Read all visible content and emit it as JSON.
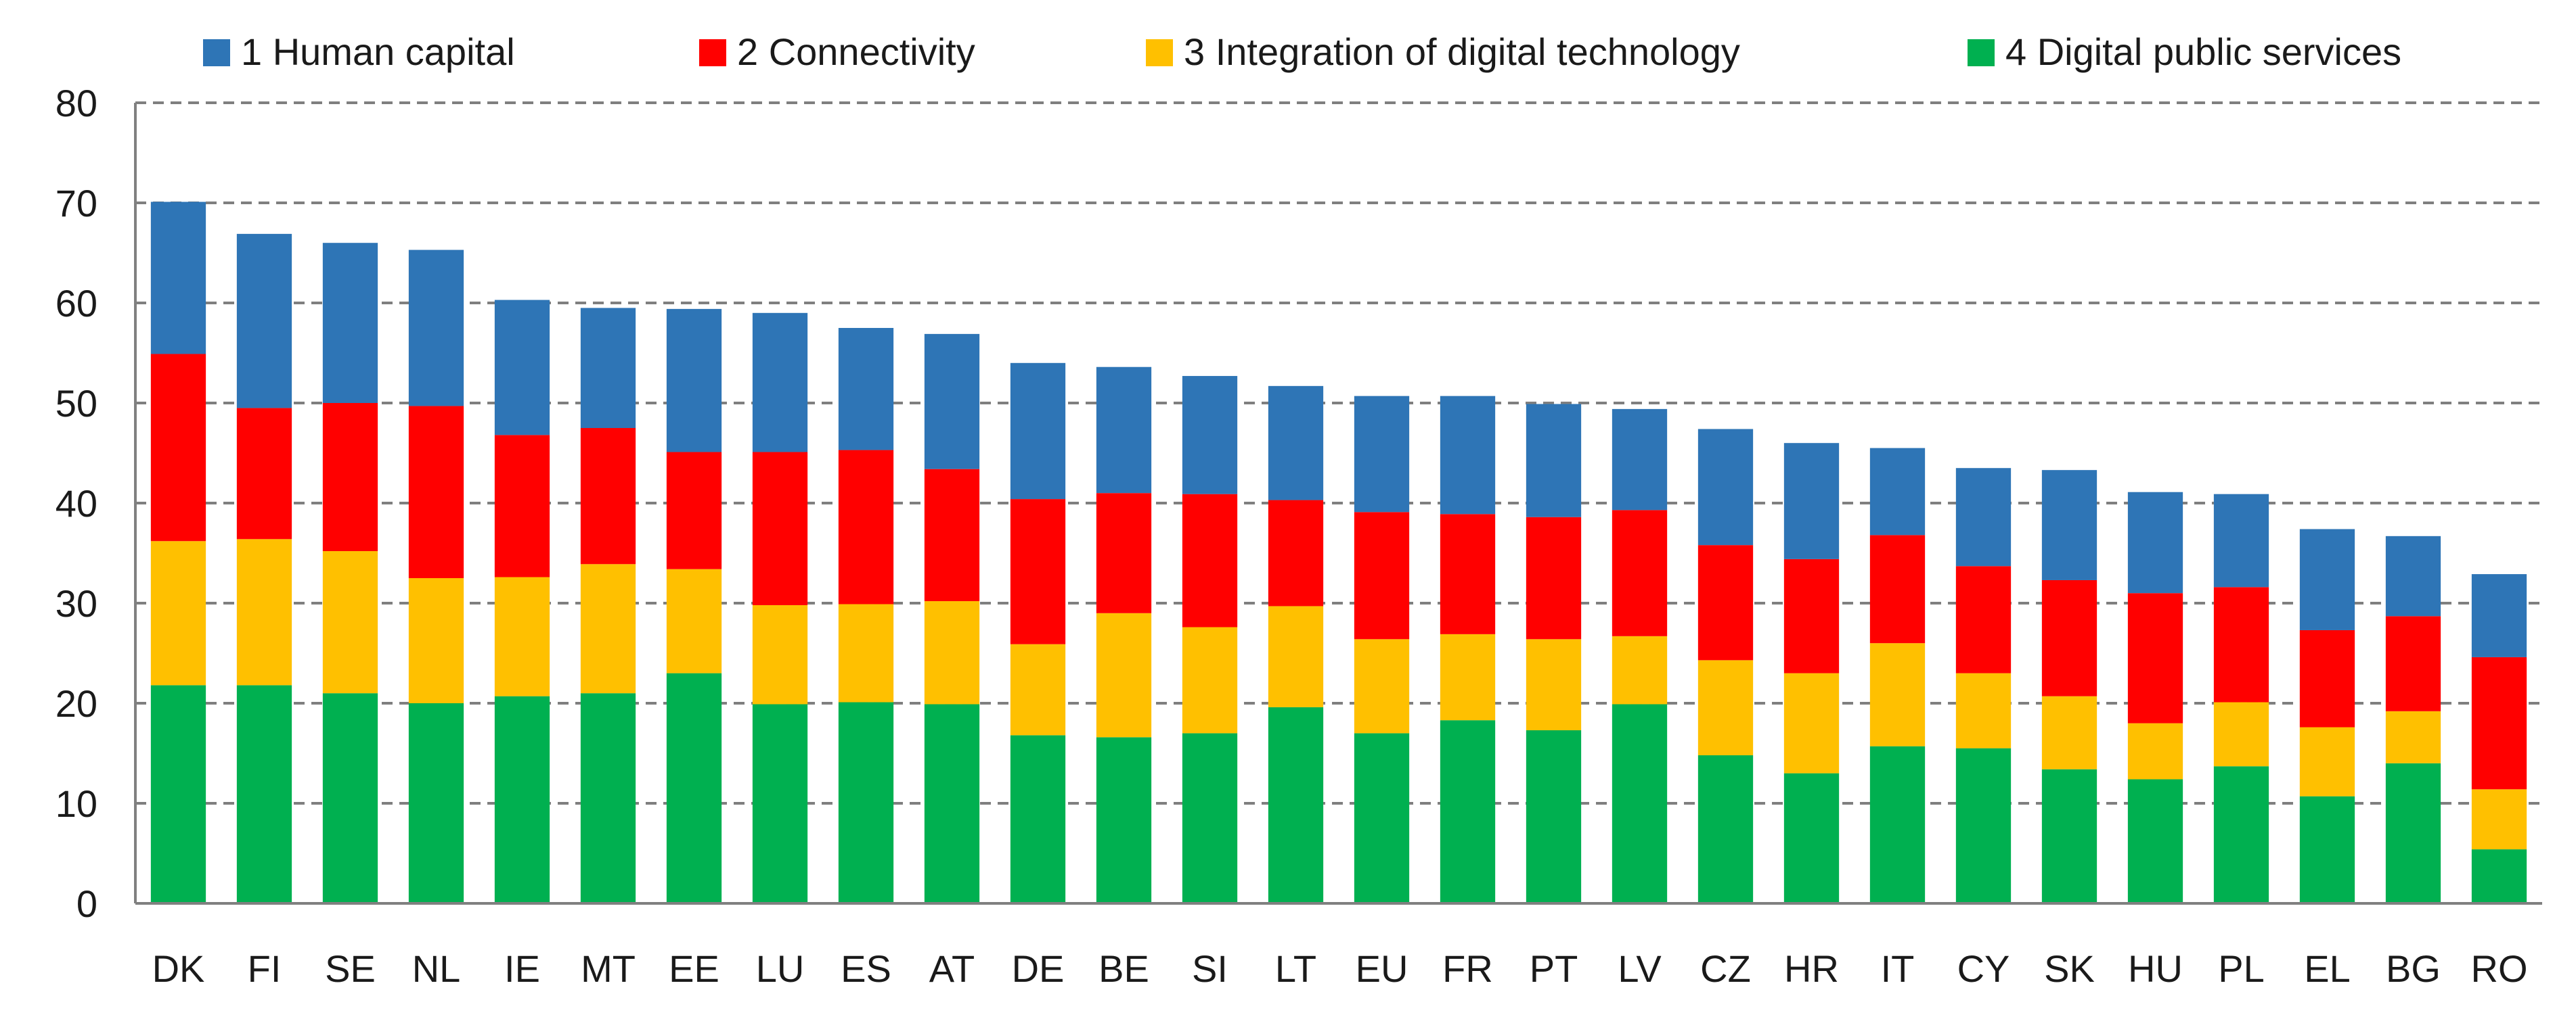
{
  "chart_data": {
    "type": "bar",
    "stacked": true,
    "title": "",
    "xlabel": "",
    "ylabel": "",
    "ylim": [
      0,
      80
    ],
    "yticks": [
      0,
      10,
      20,
      30,
      40,
      50,
      60,
      70,
      80
    ],
    "grid": "horizontal dashed",
    "legend_position": "top",
    "categories": [
      "DK",
      "FI",
      "SE",
      "NL",
      "IE",
      "MT",
      "EE",
      "LU",
      "ES",
      "AT",
      "DE",
      "BE",
      "SI",
      "LT",
      "EU",
      "FR",
      "PT",
      "LV",
      "CZ",
      "HR",
      "IT",
      "CY",
      "SK",
      "HU",
      "PL",
      "EL",
      "BG",
      "RO"
    ],
    "series": [
      {
        "name": "4 Digital public services",
        "color": "#00b050",
        "values": [
          21.8,
          21.8,
          21.0,
          20.0,
          20.7,
          21.0,
          23.0,
          19.9,
          20.1,
          19.9,
          16.8,
          16.6,
          17.0,
          19.6,
          17.0,
          18.3,
          17.3,
          19.9,
          14.8,
          13.0,
          15.7,
          15.5,
          13.4,
          12.4,
          13.7,
          10.7,
          14.0,
          5.4
        ]
      },
      {
        "name": "3 Integration of digital technology",
        "color": "#ffc000",
        "values": [
          14.4,
          14.6,
          14.2,
          12.5,
          11.9,
          12.9,
          10.4,
          9.9,
          9.8,
          10.3,
          9.1,
          12.4,
          10.6,
          10.1,
          9.4,
          8.6,
          9.1,
          6.8,
          9.5,
          10.0,
          10.3,
          7.5,
          7.3,
          5.6,
          6.4,
          6.9,
          5.2,
          6.0
        ]
      },
      {
        "name": "2 Connectivity",
        "color": "#ff0000",
        "values": [
          18.7,
          13.1,
          14.8,
          17.2,
          14.2,
          13.6,
          11.7,
          15.3,
          15.4,
          13.2,
          14.5,
          12.0,
          13.3,
          10.6,
          12.7,
          12.0,
          12.2,
          12.6,
          11.5,
          11.4,
          10.8,
          10.7,
          11.6,
          13.0,
          11.5,
          9.7,
          9.5,
          13.2
        ]
      },
      {
        "name": "1 Human capital",
        "color": "#2e75b6",
        "values": [
          15.2,
          17.4,
          16.0,
          15.6,
          13.5,
          12.0,
          14.3,
          13.9,
          12.2,
          13.5,
          13.6,
          12.6,
          11.8,
          11.4,
          11.6,
          11.8,
          11.3,
          10.1,
          11.6,
          11.6,
          8.7,
          9.8,
          11.0,
          10.1,
          9.3,
          10.1,
          8.0,
          8.3
        ]
      }
    ],
    "legend": [
      {
        "label": "1 Human capital",
        "color": "#2e75b6"
      },
      {
        "label": "2 Connectivity",
        "color": "#ff0000"
      },
      {
        "label": "3 Integration of digital technology",
        "color": "#ffc000"
      },
      {
        "label": "4 Digital public services",
        "color": "#00b050"
      }
    ]
  }
}
